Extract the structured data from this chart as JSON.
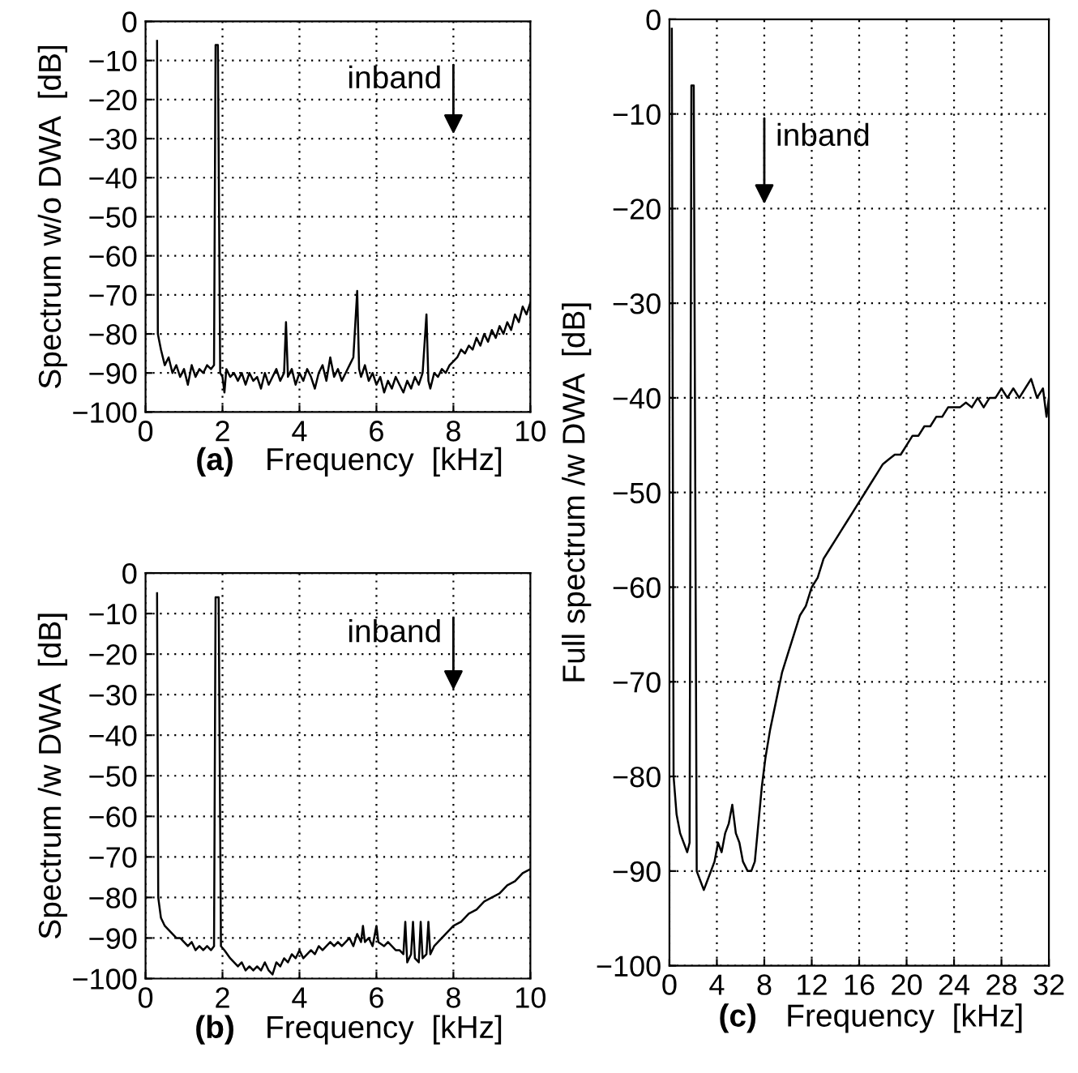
{
  "chart_data": [
    {
      "type": "line",
      "xlabel": "Frequency  [kHz]",
      "ylabel": "Spectrum w/o DWA  [dB]",
      "annotations": [
        "(a)",
        "inband"
      ],
      "xlim": [
        0,
        10
      ],
      "ylim": [
        -100,
        0
      ],
      "xticks": [
        0,
        2,
        4,
        6,
        8,
        10
      ],
      "yticks": [
        0,
        -10,
        -20,
        -30,
        -40,
        -50,
        -60,
        -70,
        -80,
        -90,
        -100
      ],
      "grid": true,
      "marker": "none",
      "line_style": "solid",
      "series": [
        {
          "color": "#000000",
          "x": [
            0.3,
            0.32,
            0.4,
            0.5,
            0.6,
            0.7,
            0.8,
            0.9,
            1.0,
            1.1,
            1.2,
            1.3,
            1.4,
            1.5,
            1.6,
            1.7,
            1.78,
            1.82,
            1.88,
            1.94,
            2.0,
            2.05,
            2.1,
            2.2,
            2.3,
            2.4,
            2.5,
            2.6,
            2.7,
            2.8,
            2.9,
            3.0,
            3.1,
            3.2,
            3.3,
            3.4,
            3.5,
            3.6,
            3.65,
            3.7,
            3.8,
            3.9,
            4.0,
            4.1,
            4.2,
            4.3,
            4.4,
            4.5,
            4.6,
            4.7,
            4.8,
            4.9,
            5.0,
            5.1,
            5.2,
            5.3,
            5.4,
            5.5,
            5.55,
            5.6,
            5.7,
            5.8,
            5.9,
            6.0,
            6.1,
            6.2,
            6.3,
            6.4,
            6.5,
            6.6,
            6.7,
            6.8,
            6.9,
            7.0,
            7.1,
            7.2,
            7.3,
            7.35,
            7.4,
            7.5,
            7.6,
            7.7,
            7.8,
            7.9,
            8.0,
            8.1,
            8.2,
            8.3,
            8.4,
            8.5,
            8.6,
            8.7,
            8.8,
            8.9,
            9.0,
            9.1,
            9.2,
            9.3,
            9.4,
            9.5,
            9.6,
            9.7,
            9.8,
            9.9,
            10.0
          ],
          "values": [
            -5,
            -80,
            -84,
            -88,
            -86,
            -90,
            -88,
            -91,
            -89,
            -93,
            -88,
            -91,
            -89,
            -90,
            -88,
            -89,
            -88,
            -6,
            -6,
            -90,
            -91,
            -95,
            -89,
            -91,
            -90,
            -92,
            -90,
            -93,
            -90,
            -92,
            -91,
            -94,
            -90,
            -93,
            -91,
            -89,
            -92,
            -90,
            -77,
            -91,
            -89,
            -93,
            -90,
            -92,
            -89,
            -91,
            -94,
            -90,
            -88,
            -92,
            -86,
            -91,
            -89,
            -92,
            -90,
            -88,
            -86,
            -69,
            -89,
            -91,
            -88,
            -92,
            -90,
            -93,
            -91,
            -95,
            -92,
            -94,
            -91,
            -93,
            -95,
            -92,
            -94,
            -91,
            -93,
            -90,
            -75,
            -92,
            -94,
            -90,
            -91,
            -89,
            -90,
            -88,
            -87,
            -86,
            -84,
            -85,
            -83,
            -84,
            -81,
            -83,
            -80,
            -82,
            -79,
            -81,
            -78,
            -80,
            -77,
            -79,
            -75,
            -77,
            -73,
            -75,
            -72
          ]
        }
      ]
    },
    {
      "type": "line",
      "xlabel": "Frequency  [kHz]",
      "ylabel": "Spectrum /w DWA  [dB]",
      "annotations": [
        "(b)",
        "inband"
      ],
      "xlim": [
        0,
        10
      ],
      "ylim": [
        -100,
        0
      ],
      "xticks": [
        0,
        2,
        4,
        6,
        8,
        10
      ],
      "yticks": [
        0,
        -10,
        -20,
        -30,
        -40,
        -50,
        -60,
        -70,
        -80,
        -90,
        -100
      ],
      "grid": true,
      "marker": "none",
      "line_style": "solid",
      "series": [
        {
          "color": "#000000",
          "x": [
            0.3,
            0.33,
            0.4,
            0.5,
            0.6,
            0.7,
            0.8,
            0.9,
            1.0,
            1.1,
            1.2,
            1.3,
            1.4,
            1.5,
            1.6,
            1.7,
            1.78,
            1.82,
            1.9,
            1.96,
            2.05,
            2.2,
            2.3,
            2.4,
            2.5,
            2.6,
            2.7,
            2.8,
            2.9,
            3.0,
            3.1,
            3.2,
            3.3,
            3.4,
            3.5,
            3.6,
            3.7,
            3.8,
            3.9,
            4.0,
            4.1,
            4.2,
            4.3,
            4.4,
            4.5,
            4.6,
            4.7,
            4.8,
            4.9,
            5.0,
            5.1,
            5.2,
            5.3,
            5.4,
            5.5,
            5.6,
            5.65,
            5.7,
            5.8,
            5.9,
            6.0,
            6.05,
            6.2,
            6.3,
            6.4,
            6.5,
            6.6,
            6.7,
            6.75,
            6.8,
            6.9,
            6.95,
            7.0,
            7.1,
            7.15,
            7.2,
            7.3,
            7.35,
            7.4,
            7.5,
            7.6,
            7.7,
            7.8,
            7.9,
            8.0,
            8.2,
            8.4,
            8.6,
            8.8,
            9.0,
            9.2,
            9.4,
            9.6,
            9.8,
            10.0
          ],
          "values": [
            -5,
            -80,
            -85,
            -87,
            -88,
            -89,
            -90,
            -90,
            -91,
            -92,
            -91,
            -93,
            -92,
            -93,
            -92,
            -93,
            -92,
            -6,
            -6,
            -92,
            -93,
            -95,
            -96,
            -97,
            -96,
            -98,
            -97,
            -98,
            -97,
            -98,
            -96,
            -98,
            -99,
            -96,
            -97,
            -95,
            -96,
            -94,
            -95,
            -93,
            -95,
            -94,
            -93,
            -94,
            -92,
            -93,
            -92,
            -91,
            -92,
            -91,
            -92,
            -91,
            -90,
            -92,
            -89,
            -91,
            -87,
            -91,
            -90,
            -92,
            -87,
            -91,
            -92,
            -91,
            -92,
            -93,
            -93,
            -94,
            -86,
            -96,
            -94,
            -86,
            -95,
            -96,
            -86,
            -95,
            -94,
            -86,
            -94,
            -92,
            -91,
            -90,
            -89,
            -88,
            -87,
            -86,
            -84,
            -83,
            -81,
            -80,
            -79,
            -77,
            -76,
            -74,
            -73
          ]
        }
      ]
    },
    {
      "type": "line",
      "xlabel": "Frequency  [kHz]",
      "ylabel": "Full spectrum /w DWA  [dB]",
      "annotations": [
        "(c)",
        "inband"
      ],
      "xlim": [
        0,
        32
      ],
      "ylim": [
        -100,
        0
      ],
      "xticks": [
        0,
        4,
        8,
        12,
        16,
        20,
        24,
        28,
        32
      ],
      "yticks": [
        0,
        -10,
        -20,
        -30,
        -40,
        -50,
        -60,
        -70,
        -80,
        -90,
        -100
      ],
      "grid": true,
      "marker": "none",
      "line_style": "solid",
      "series": [
        {
          "color": "#000000",
          "x": [
            0.2,
            0.35,
            0.6,
            0.9,
            1.2,
            1.5,
            1.7,
            1.85,
            2.05,
            2.3,
            2.6,
            2.9,
            3.2,
            3.5,
            3.8,
            4.1,
            4.4,
            4.7,
            5.0,
            5.3,
            5.6,
            5.9,
            6.2,
            6.6,
            6.9,
            7.2,
            7.5,
            7.8,
            8.1,
            8.5,
            9.0,
            9.5,
            10,
            10.5,
            11,
            11.5,
            12,
            12.5,
            13,
            13.5,
            14,
            14.5,
            15,
            15.5,
            16,
            16.5,
            17,
            17.5,
            18,
            18.5,
            19,
            19.5,
            20,
            20.5,
            21,
            21.5,
            22,
            22.5,
            23,
            23.5,
            24,
            24.5,
            25,
            25.5,
            26,
            26.5,
            27,
            27.5,
            28,
            28.5,
            29,
            29.5,
            30,
            30.5,
            31,
            31.5,
            31.8,
            32
          ],
          "values": [
            -1,
            -80,
            -84,
            -86,
            -87,
            -88,
            -87,
            -7,
            -7,
            -90,
            -91,
            -92,
            -91,
            -90,
            -89,
            -87,
            -88,
            -86,
            -85,
            -83,
            -86,
            -87,
            -89,
            -90,
            -90,
            -89,
            -85,
            -81,
            -78,
            -75,
            -72,
            -69,
            -67,
            -65,
            -63,
            -62,
            -60,
            -59,
            -57,
            -56,
            -55,
            -54,
            -53,
            -52,
            -51,
            -50,
            -49,
            -48,
            -47,
            -46.5,
            -46,
            -46,
            -45,
            -44,
            -44,
            -43,
            -43,
            -42,
            -42,
            -41,
            -41,
            -41,
            -40.5,
            -41,
            -40,
            -41,
            -40,
            -40,
            -39,
            -40,
            -39,
            -40,
            -39,
            -38,
            -40,
            -39,
            -42,
            -40
          ]
        }
      ]
    }
  ]
}
